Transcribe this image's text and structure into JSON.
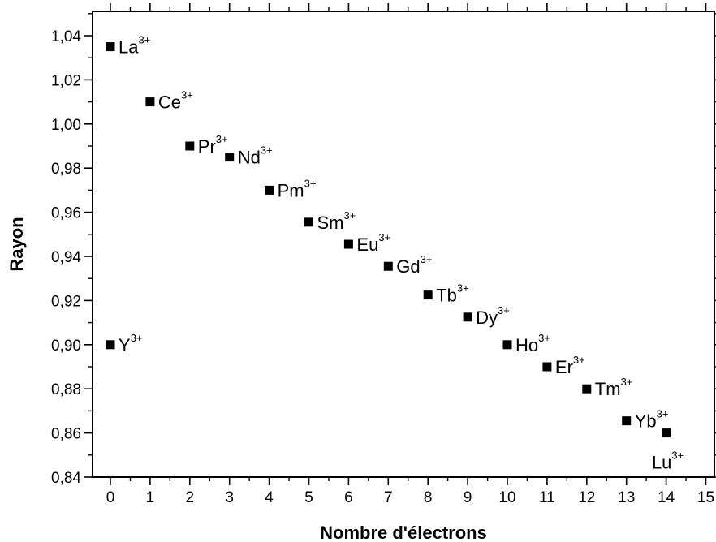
{
  "chart_data": {
    "type": "scatter",
    "title": "",
    "xlabel": "Nombre d'électrons",
    "ylabel": "Rayon",
    "xlim": [
      -0.5,
      15.3
    ],
    "ylim": [
      0.84,
      1.05
    ],
    "x_ticks": [
      "0",
      "1",
      "2",
      "3",
      "4",
      "5",
      "6",
      "7",
      "8",
      "9",
      "10",
      "11",
      "12",
      "13",
      "14",
      "15"
    ],
    "y_ticks": [
      "0,84",
      "0,86",
      "0,88",
      "0,90",
      "0,92",
      "0,94",
      "0,96",
      "0,98",
      "1,00",
      "1,02",
      "1,04"
    ],
    "grid": false,
    "marker": "square",
    "marker_color": "#000000",
    "points": [
      {
        "x": 0,
        "y": 1.035,
        "element": "La",
        "charge": "3+"
      },
      {
        "x": 1,
        "y": 1.01,
        "element": "Ce",
        "charge": "3+"
      },
      {
        "x": 2,
        "y": 0.99,
        "element": "Pr",
        "charge": "3+"
      },
      {
        "x": 3,
        "y": 0.985,
        "element": "Nd",
        "charge": "3+"
      },
      {
        "x": 4,
        "y": 0.97,
        "element": "Pm",
        "charge": "3+"
      },
      {
        "x": 5,
        "y": 0.9555,
        "element": "Sm",
        "charge": "3+"
      },
      {
        "x": 6,
        "y": 0.9455,
        "element": "Eu",
        "charge": "3+"
      },
      {
        "x": 7,
        "y": 0.9355,
        "element": "Gd",
        "charge": "3+"
      },
      {
        "x": 8,
        "y": 0.9225,
        "element": "Tb",
        "charge": "3+"
      },
      {
        "x": 9,
        "y": 0.9125,
        "element": "Dy",
        "charge": "3+"
      },
      {
        "x": 10,
        "y": 0.9,
        "element": "Ho",
        "charge": "3+"
      },
      {
        "x": 11,
        "y": 0.89,
        "element": "Er",
        "charge": "3+"
      },
      {
        "x": 12,
        "y": 0.88,
        "element": "Tm",
        "charge": "3+"
      },
      {
        "x": 13,
        "y": 0.8655,
        "element": "Yb",
        "charge": "3+"
      },
      {
        "x": 14,
        "y": 0.86,
        "element": "Lu",
        "charge": "3+"
      },
      {
        "x": 0,
        "y": 0.9,
        "element": "Y",
        "charge": "3+"
      }
    ]
  }
}
